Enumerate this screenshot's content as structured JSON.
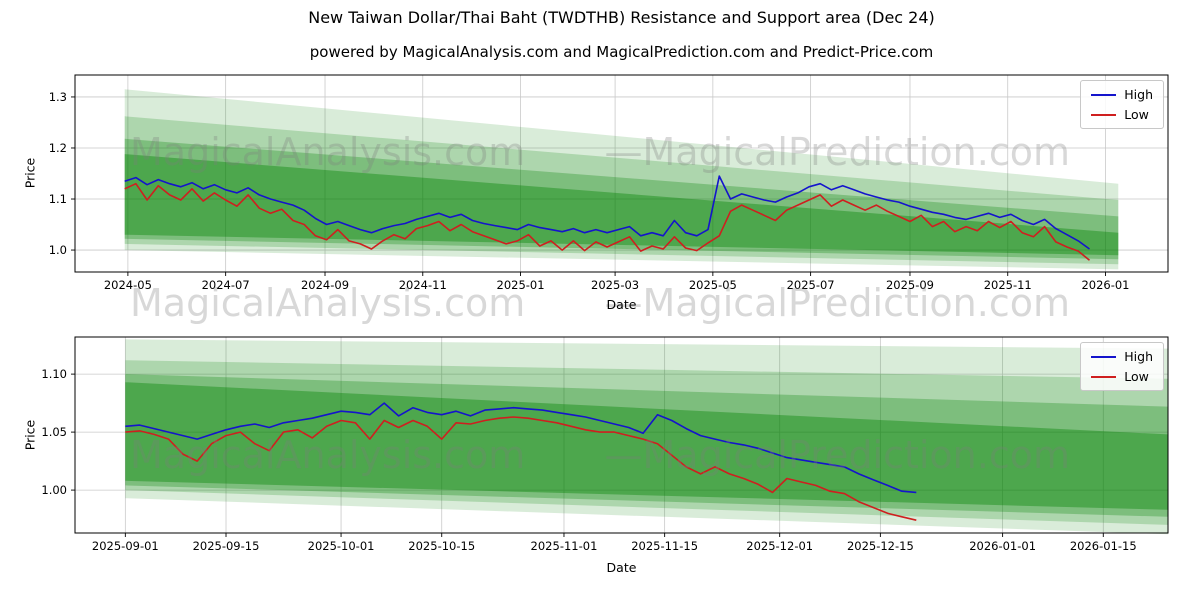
{
  "figure": {
    "title": "New Taiwan Dollar/Thai Baht (TWDTHB) Resistance and Support area (Dec 24)",
    "subtitle": "powered by MagicalAnalysis.com and MagicalPrediction.com and Predict-Price.com",
    "watermark": {
      "left_text": "MagicalAnalysis.com",
      "right_text": "—MagicalPrediction.com"
    }
  },
  "colors": {
    "high": "#1414cc",
    "low": "#cf1f1f",
    "band": "#008000",
    "grid": "#c9c9c9",
    "spine": "#000000"
  },
  "legend": {
    "high_label": "High",
    "low_label": "Low"
  },
  "chart_data": [
    {
      "type": "line",
      "xlabel": "Date",
      "ylabel": "Price",
      "grid": true,
      "legend_position": "upper right",
      "xlim": [
        "2024-03-29",
        "2026-02-09"
      ],
      "ylim": [
        0.957,
        1.343
      ],
      "xticks": [
        {
          "date": "2024-05-01",
          "label": "2024-05"
        },
        {
          "date": "2024-07-01",
          "label": "2024-07"
        },
        {
          "date": "2024-09-01",
          "label": "2024-09"
        },
        {
          "date": "2024-11-01",
          "label": "2024-11"
        },
        {
          "date": "2025-01-01",
          "label": "2025-01"
        },
        {
          "date": "2025-03-01",
          "label": "2025-03"
        },
        {
          "date": "2025-05-01",
          "label": "2025-05"
        },
        {
          "date": "2025-07-01",
          "label": "2025-07"
        },
        {
          "date": "2025-09-01",
          "label": "2025-09"
        },
        {
          "date": "2025-11-01",
          "label": "2025-11"
        },
        {
          "date": "2026-01-01",
          "label": "2026-01"
        }
      ],
      "yticks": [
        {
          "value": 1.0,
          "label": "1.0"
        },
        {
          "value": 1.1,
          "label": "1.1"
        },
        {
          "value": 1.2,
          "label": "1.2"
        },
        {
          "value": 1.3,
          "label": "1.3"
        }
      ],
      "bands": {
        "x0": "2024-04-29",
        "x1": "2026-01-09",
        "layers": [
          {
            "alpha": 0.15,
            "top": [
              1.315,
              1.13
            ],
            "bottom": [
              1.0,
              0.962
            ]
          },
          {
            "alpha": 0.2,
            "top": [
              1.262,
              1.098
            ],
            "bottom": [
              1.012,
              0.972
            ]
          },
          {
            "alpha": 0.28,
            "top": [
              1.218,
              1.066
            ],
            "bottom": [
              1.022,
              0.982
            ]
          },
          {
            "alpha": 0.38,
            "top": [
              1.188,
              1.034
            ],
            "bottom": [
              1.03,
              0.99
            ]
          }
        ]
      },
      "series": {
        "start": "2024-04-29",
        "step_days": 7,
        "high": [
          1.135,
          1.142,
          1.128,
          1.138,
          1.13,
          1.124,
          1.132,
          1.12,
          1.128,
          1.118,
          1.112,
          1.122,
          1.108,
          1.1,
          1.094,
          1.088,
          1.078,
          1.062,
          1.05,
          1.056,
          1.048,
          1.04,
          1.034,
          1.042,
          1.048,
          1.052,
          1.06,
          1.066,
          1.072,
          1.064,
          1.07,
          1.058,
          1.052,
          1.048,
          1.044,
          1.04,
          1.05,
          1.044,
          1.04,
          1.036,
          1.042,
          1.034,
          1.04,
          1.034,
          1.04,
          1.046,
          1.028,
          1.034,
          1.028,
          1.058,
          1.034,
          1.028,
          1.04,
          1.145,
          1.1,
          1.11,
          1.104,
          1.098,
          1.094,
          1.104,
          1.112,
          1.124,
          1.13,
          1.118,
          1.126,
          1.118,
          1.11,
          1.104,
          1.098,
          1.094,
          1.086,
          1.08,
          1.074,
          1.07,
          1.064,
          1.06,
          1.066,
          1.072,
          1.064,
          1.07,
          1.058,
          1.05,
          1.06,
          1.042,
          1.03,
          1.018,
          1.002
        ],
        "low": [
          1.12,
          1.13,
          1.098,
          1.126,
          1.108,
          1.098,
          1.12,
          1.096,
          1.112,
          1.098,
          1.086,
          1.108,
          1.082,
          1.072,
          1.08,
          1.058,
          1.05,
          1.028,
          1.02,
          1.04,
          1.018,
          1.012,
          1.002,
          1.018,
          1.03,
          1.022,
          1.042,
          1.048,
          1.056,
          1.038,
          1.05,
          1.036,
          1.028,
          1.02,
          1.012,
          1.018,
          1.03,
          1.008,
          1.018,
          1.0,
          1.018,
          0.999,
          1.016,
          1.006,
          1.016,
          1.026,
          0.998,
          1.008,
          1.002,
          1.026,
          1.004,
          0.999,
          1.014,
          1.028,
          1.076,
          1.088,
          1.078,
          1.068,
          1.058,
          1.078,
          1.088,
          1.098,
          1.108,
          1.086,
          1.098,
          1.088,
          1.078,
          1.088,
          1.076,
          1.066,
          1.056,
          1.068,
          1.046,
          1.056,
          1.036,
          1.046,
          1.038,
          1.056,
          1.044,
          1.056,
          1.034,
          1.026,
          1.046,
          1.016,
          1.006,
          0.998,
          0.98
        ]
      }
    },
    {
      "type": "line",
      "xlabel": "Date",
      "ylabel": "Price",
      "grid": true,
      "legend_position": "upper right",
      "xlim": [
        "2025-08-25",
        "2026-01-24"
      ],
      "ylim": [
        0.963,
        1.132
      ],
      "xticks": [
        {
          "date": "2025-09-01",
          "label": "2025-09-01"
        },
        {
          "date": "2025-09-15",
          "label": "2025-09-15"
        },
        {
          "date": "2025-10-01",
          "label": "2025-10-01"
        },
        {
          "date": "2025-10-15",
          "label": "2025-10-15"
        },
        {
          "date": "2025-11-01",
          "label": "2025-11-01"
        },
        {
          "date": "2025-11-15",
          "label": "2025-11-15"
        },
        {
          "date": "2025-12-01",
          "label": "2025-12-01"
        },
        {
          "date": "2025-12-15",
          "label": "2025-12-15"
        },
        {
          "date": "2026-01-01",
          "label": "2026-01-01"
        },
        {
          "date": "2026-01-15",
          "label": "2026-01-15"
        }
      ],
      "yticks": [
        {
          "value": 1.0,
          "label": "1.00"
        },
        {
          "value": 1.05,
          "label": "1.05"
        },
        {
          "value": 1.1,
          "label": "1.10"
        }
      ],
      "bands": {
        "x0": "2025-09-01",
        "x1": "2026-01-24",
        "layers": [
          {
            "alpha": 0.15,
            "top": [
              1.13,
              1.122
            ],
            "bottom": [
              0.993,
              0.962
            ]
          },
          {
            "alpha": 0.2,
            "top": [
              1.112,
              1.096
            ],
            "bottom": [
              1.0,
              0.97
            ]
          },
          {
            "alpha": 0.28,
            "top": [
              1.1,
              1.072
            ],
            "bottom": [
              1.004,
              0.977
            ]
          },
          {
            "alpha": 0.38,
            "top": [
              1.093,
              1.048
            ],
            "bottom": [
              1.008,
              0.983
            ]
          }
        ]
      },
      "series": {
        "start": "2025-09-01",
        "step_days": 2,
        "high": [
          1.055,
          1.056,
          1.053,
          1.05,
          1.047,
          1.044,
          1.048,
          1.052,
          1.055,
          1.057,
          1.054,
          1.058,
          1.06,
          1.062,
          1.065,
          1.068,
          1.067,
          1.065,
          1.075,
          1.064,
          1.071,
          1.067,
          1.065,
          1.068,
          1.064,
          1.069,
          1.07,
          1.071,
          1.07,
          1.069,
          1.067,
          1.065,
          1.063,
          1.06,
          1.057,
          1.054,
          1.049,
          1.065,
          1.06,
          1.053,
          1.047,
          1.044,
          1.041,
          1.039,
          1.036,
          1.032,
          1.028,
          1.026,
          1.024,
          1.022,
          1.02,
          1.014,
          1.009,
          1.004,
          0.999,
          0.998
        ],
        "low": [
          1.05,
          1.051,
          1.048,
          1.044,
          1.031,
          1.025,
          1.04,
          1.047,
          1.05,
          1.04,
          1.034,
          1.05,
          1.052,
          1.045,
          1.055,
          1.06,
          1.058,
          1.044,
          1.06,
          1.054,
          1.06,
          1.055,
          1.044,
          1.058,
          1.057,
          1.06,
          1.062,
          1.063,
          1.062,
          1.06,
          1.058,
          1.055,
          1.052,
          1.05,
          1.05,
          1.047,
          1.044,
          1.04,
          1.03,
          1.02,
          1.014,
          1.02,
          1.014,
          1.01,
          1.005,
          0.998,
          1.01,
          1.007,
          1.004,
          0.999,
          0.997,
          0.99,
          0.985,
          0.98,
          0.977,
          0.974
        ]
      }
    }
  ]
}
